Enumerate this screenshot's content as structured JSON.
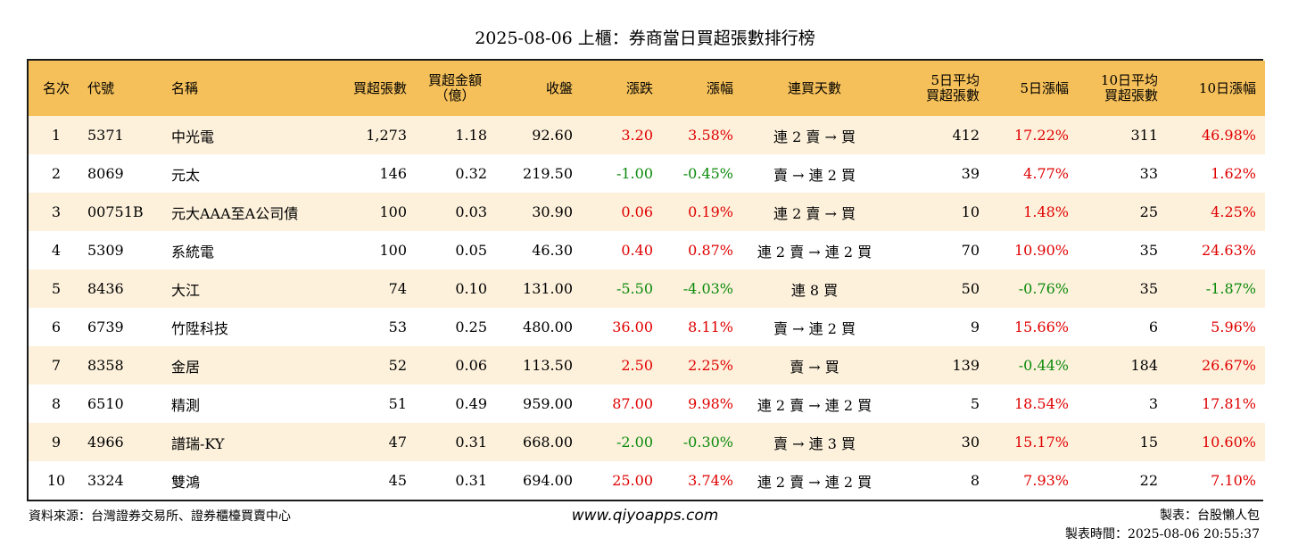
{
  "title": "2025-08-06 上櫃：券商當日買超張數排行榜",
  "colors": {
    "header_bg": "#f5c05a",
    "row_alt_bg": "#fdf1dc",
    "up": "#e00000",
    "down": "#0a8a0a"
  },
  "columns": {
    "rank": "名次",
    "code": "代號",
    "name": "名稱",
    "net_buy_lots": "買超張數",
    "net_buy_amount_1": "買超金額",
    "net_buy_amount_2": "（億）",
    "close": "收盤",
    "change": "漲跌",
    "change_pct": "漲幅",
    "consecutive": "連買天數",
    "avg5_1": "5日平均",
    "avg5_2": "買超張數",
    "chg5": "5日漲幅",
    "avg10_1": "10日平均",
    "avg10_2": "買超張數",
    "chg10": "10日漲幅"
  },
  "rows": [
    {
      "rank": "1",
      "code": "5371",
      "name": "中光電",
      "lots": "1,273",
      "amount": "1.18",
      "close": "92.60",
      "change": "3.20",
      "pct": "3.58%",
      "days": "連 2 賣 → 買",
      "avg5": "412",
      "chg5": "17.22%",
      "avg10": "311",
      "chg10": "46.98%"
    },
    {
      "rank": "2",
      "code": "8069",
      "name": "元太",
      "lots": "146",
      "amount": "0.32",
      "close": "219.50",
      "change": "-1.00",
      "pct": "-0.45%",
      "days": "賣 → 連 2 買",
      "avg5": "39",
      "chg5": "4.77%",
      "avg10": "33",
      "chg10": "1.62%"
    },
    {
      "rank": "3",
      "code": "00751B",
      "name": "元大AAA至A公司債",
      "lots": "100",
      "amount": "0.03",
      "close": "30.90",
      "change": "0.06",
      "pct": "0.19%",
      "days": "連 2 賣 → 買",
      "avg5": "10",
      "chg5": "1.48%",
      "avg10": "25",
      "chg10": "4.25%"
    },
    {
      "rank": "4",
      "code": "5309",
      "name": "系統電",
      "lots": "100",
      "amount": "0.05",
      "close": "46.30",
      "change": "0.40",
      "pct": "0.87%",
      "days": "連 2 賣 → 連 2 買",
      "avg5": "70",
      "chg5": "10.90%",
      "avg10": "35",
      "chg10": "24.63%"
    },
    {
      "rank": "5",
      "code": "8436",
      "name": "大江",
      "lots": "74",
      "amount": "0.10",
      "close": "131.00",
      "change": "-5.50",
      "pct": "-4.03%",
      "days": "連 8 買",
      "avg5": "50",
      "chg5": "-0.76%",
      "avg10": "35",
      "chg10": "-1.87%"
    },
    {
      "rank": "6",
      "code": "6739",
      "name": "竹陞科技",
      "lots": "53",
      "amount": "0.25",
      "close": "480.00",
      "change": "36.00",
      "pct": "8.11%",
      "days": "賣 → 連 2 買",
      "avg5": "9",
      "chg5": "15.66%",
      "avg10": "6",
      "chg10": "5.96%"
    },
    {
      "rank": "7",
      "code": "8358",
      "name": "金居",
      "lots": "52",
      "amount": "0.06",
      "close": "113.50",
      "change": "2.50",
      "pct": "2.25%",
      "days": "賣 → 買",
      "avg5": "139",
      "chg5": "-0.44%",
      "avg10": "184",
      "chg10": "26.67%"
    },
    {
      "rank": "8",
      "code": "6510",
      "name": "精測",
      "lots": "51",
      "amount": "0.49",
      "close": "959.00",
      "change": "87.00",
      "pct": "9.98%",
      "days": "連 2 賣 → 連 2 買",
      "avg5": "5",
      "chg5": "18.54%",
      "avg10": "3",
      "chg10": "17.81%"
    },
    {
      "rank": "9",
      "code": "4966",
      "name": "譜瑞-KY",
      "lots": "47",
      "amount": "0.31",
      "close": "668.00",
      "change": "-2.00",
      "pct": "-0.30%",
      "days": "賣 → 連 3 買",
      "avg5": "30",
      "chg5": "15.17%",
      "avg10": "15",
      "chg10": "10.60%"
    },
    {
      "rank": "10",
      "code": "3324",
      "name": "雙鴻",
      "lots": "45",
      "amount": "0.31",
      "close": "694.00",
      "change": "25.00",
      "pct": "3.74%",
      "days": "連 2 賣 → 連 2 買",
      "avg5": "8",
      "chg5": "7.93%",
      "avg10": "22",
      "chg10": "7.10%"
    }
  ],
  "footer": {
    "source": "資料來源：台灣證券交易所、證券櫃檯買賣中心",
    "website": "www.qiyoapps.com",
    "author": "製表：台股懶人包",
    "timestamp": "製表時間：2025-08-06 20:55:37"
  }
}
